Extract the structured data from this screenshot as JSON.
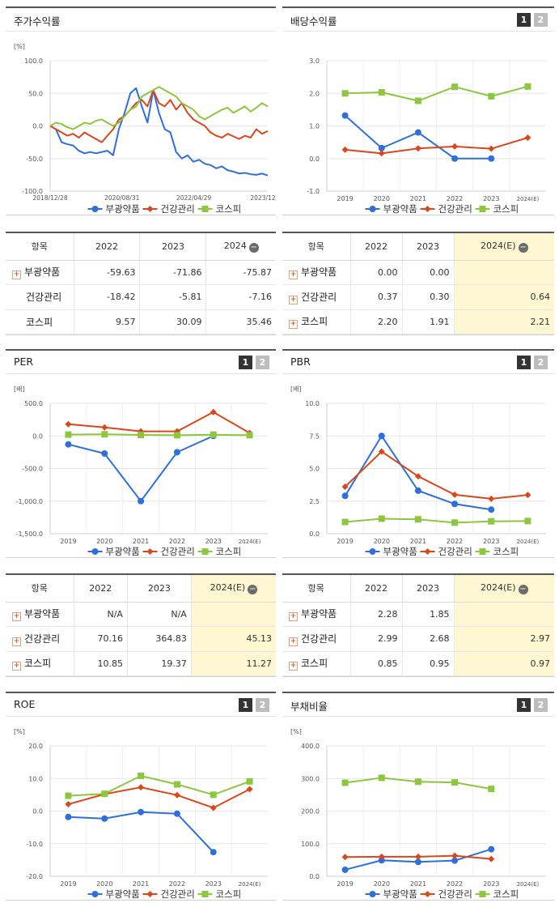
{
  "panels": {
    "stock_return": {
      "title": "주가수익률"
    },
    "dividend": {
      "title": "배당수익률",
      "btn1": "1",
      "btn2": "2"
    },
    "per": {
      "title": "PER",
      "btn1": "1",
      "btn2": "2"
    },
    "pbr": {
      "title": "PBR",
      "btn1": "1",
      "btn2": "2"
    },
    "roe": {
      "title": "ROE",
      "btn1": "1",
      "btn2": "2"
    },
    "debt": {
      "title": "부채비율",
      "btn1": "1",
      "btn2": "2"
    }
  },
  "legend": [
    "부광약품",
    "건강관리",
    "코스피"
  ],
  "colors": {
    "s1": "#2e6fdc",
    "s2": "#d9471a",
    "s3": "#8dc63f"
  },
  "tables": {
    "stock_return": {
      "headers": [
        "항목",
        "2022",
        "2023",
        "2024"
      ],
      "rows": [
        {
          "name": "부광약품",
          "plus": true,
          "values": [
            "-59.63",
            "-71.86",
            "-75.87"
          ]
        },
        {
          "name": "건강관리",
          "plus": false,
          "values": [
            "-18.42",
            "-5.81",
            "-7.16"
          ]
        },
        {
          "name": "코스피",
          "plus": false,
          "values": [
            "9.57",
            "30.09",
            "35.46"
          ]
        }
      ]
    },
    "dividend": {
      "headers": [
        "항목",
        "2022",
        "2023",
        "2024(E)"
      ],
      "rows": [
        {
          "name": "부광약품",
          "plus": true,
          "values": [
            "0.00",
            "0.00",
            ""
          ]
        },
        {
          "name": "건강관리",
          "plus": true,
          "values": [
            "0.37",
            "0.30",
            "0.64"
          ]
        },
        {
          "name": "코스피",
          "plus": true,
          "values": [
            "2.20",
            "1.91",
            "2.21"
          ]
        }
      ]
    },
    "per": {
      "headers": [
        "항목",
        "2022",
        "2023",
        "2024(E)"
      ],
      "rows": [
        {
          "name": "부광약품",
          "plus": true,
          "values": [
            "N/A",
            "N/A",
            ""
          ]
        },
        {
          "name": "건강관리",
          "plus": true,
          "values": [
            "70.16",
            "364.83",
            "45.13"
          ]
        },
        {
          "name": "코스피",
          "plus": true,
          "values": [
            "10.85",
            "19.37",
            "11.27"
          ]
        }
      ]
    },
    "pbr": {
      "headers": [
        "항목",
        "2022",
        "2023",
        "2024(E)"
      ],
      "rows": [
        {
          "name": "부광약품",
          "plus": true,
          "values": [
            "2.28",
            "1.85",
            ""
          ]
        },
        {
          "name": "건강관리",
          "plus": true,
          "values": [
            "2.99",
            "2.68",
            "2.97"
          ]
        },
        {
          "name": "코스피",
          "plus": true,
          "values": [
            "0.85",
            "0.95",
            "0.97"
          ]
        }
      ]
    }
  },
  "chart_data": [
    {
      "id": "stock_return",
      "type": "line",
      "unit": "[%]",
      "x_labels": [
        "2018/12/28",
        "2020/08/31",
        "2022/04/29",
        "2023/12/28"
      ],
      "ylim": [
        -100,
        100
      ],
      "yticks": [
        100,
        50,
        0,
        -50,
        -100
      ],
      "ytick_labels": [
        "100.0",
        "50.0",
        "0.0",
        "-50.0",
        "-100.0"
      ],
      "series": [
        {
          "name": "부광약품",
          "values": [
            0,
            -5,
            -25,
            -28,
            -30,
            -38,
            -42,
            -40,
            -42,
            -40,
            -38,
            -45,
            -5,
            20,
            50,
            58,
            30,
            5,
            55,
            20,
            -5,
            -10,
            -40,
            -50,
            -45,
            -55,
            -52,
            -58,
            -60,
            -65,
            -62,
            -68,
            -70,
            -73,
            -72,
            -74,
            -75,
            -73,
            -76
          ]
        },
        {
          "name": "부광약품_dummy_none",
          "values": []
        },
        {
          "name": "건강관리",
          "values": [
            0,
            -5,
            -10,
            -15,
            -12,
            -18,
            -10,
            -15,
            -20,
            -25,
            -15,
            -5,
            10,
            15,
            25,
            35,
            40,
            30,
            55,
            35,
            30,
            40,
            25,
            35,
            20,
            10,
            5,
            0,
            -10,
            -15,
            -18,
            -12,
            -16,
            -20,
            -15,
            -18,
            -5,
            -12,
            -8
          ]
        },
        {
          "name": "코스피",
          "values": [
            0,
            5,
            3,
            -2,
            -5,
            0,
            5,
            3,
            8,
            10,
            5,
            0,
            5,
            15,
            25,
            30,
            45,
            50,
            55,
            60,
            55,
            50,
            45,
            35,
            30,
            25,
            15,
            10,
            15,
            20,
            25,
            28,
            20,
            25,
            30,
            22,
            28,
            35,
            30
          ]
        }
      ]
    },
    {
      "id": "dividend",
      "type": "line",
      "unit": "",
      "categories": [
        "2019",
        "2020",
        "2021",
        "2022",
        "2023",
        "2024(E)"
      ],
      "ylim": [
        -1,
        3
      ],
      "yticks": [
        3,
        2,
        1,
        0,
        -1
      ],
      "ytick_labels": [
        "3.0",
        "2.0",
        "1.0",
        "0.0",
        "-1.0"
      ],
      "series": [
        {
          "name": "부광약품",
          "values": [
            1.32,
            0.32,
            0.8,
            0.0,
            0.0,
            null
          ]
        },
        {
          "name": "건강관리",
          "values": [
            0.27,
            0.16,
            0.31,
            0.37,
            0.3,
            0.64
          ]
        },
        {
          "name": "코스피",
          "values": [
            2.0,
            2.03,
            1.77,
            2.2,
            1.91,
            2.21
          ]
        }
      ]
    },
    {
      "id": "per",
      "type": "line",
      "unit": "[배]",
      "categories": [
        "2019",
        "2020",
        "2021",
        "2022",
        "2023",
        "2024(E)"
      ],
      "ylim": [
        -1500,
        500
      ],
      "yticks": [
        500,
        0,
        -500,
        -1000,
        -1500
      ],
      "ytick_labels": [
        "500.0",
        "0.0",
        "-500.0",
        "-1,000.0",
        "-1,500.0"
      ],
      "series": [
        {
          "name": "부광약품",
          "values": [
            -130,
            -270,
            -1000,
            -250,
            0,
            null
          ]
        },
        {
          "name": "건강관리",
          "values": [
            180,
            130,
            70,
            70.16,
            364.83,
            45.13
          ]
        },
        {
          "name": "코스피",
          "values": [
            20,
            25,
            15,
            10.85,
            19.37,
            11.27
          ]
        }
      ]
    },
    {
      "id": "pbr",
      "type": "line",
      "unit": "[배]",
      "categories": [
        "2019",
        "2020",
        "2021",
        "2022",
        "2023",
        "2024(E)"
      ],
      "ylim": [
        0,
        10
      ],
      "yticks": [
        10,
        7.5,
        5,
        2.5,
        0
      ],
      "ytick_labels": [
        "10.0",
        "7.5",
        "5.0",
        "2.5",
        "0.0"
      ],
      "series": [
        {
          "name": "부광약품",
          "values": [
            2.9,
            7.5,
            3.3,
            2.28,
            1.85,
            null
          ]
        },
        {
          "name": "건강관리",
          "values": [
            3.6,
            6.3,
            4.4,
            2.99,
            2.68,
            2.97
          ]
        },
        {
          "name": "코스피",
          "values": [
            0.9,
            1.15,
            1.1,
            0.85,
            0.95,
            0.97
          ]
        }
      ]
    },
    {
      "id": "roe",
      "type": "line",
      "unit": "[%]",
      "categories": [
        "2019",
        "2020",
        "2021",
        "2022",
        "2023",
        "2024(E)"
      ],
      "ylim": [
        -20,
        20
      ],
      "yticks": [
        20,
        10,
        0,
        -10,
        -20
      ],
      "ytick_labels": [
        "20.0",
        "10.0",
        "0.0",
        "-10.0",
        "-20.0"
      ],
      "series": [
        {
          "name": "부광약품",
          "values": [
            -1.8,
            -2.3,
            -0.3,
            -0.8,
            -12.6,
            null
          ]
        },
        {
          "name": "건강관리",
          "values": [
            2.1,
            5.2,
            7.3,
            4.9,
            1.0,
            6.7
          ]
        },
        {
          "name": "코스피",
          "values": [
            4.7,
            5.3,
            10.8,
            8.2,
            5.0,
            9.1
          ]
        }
      ]
    },
    {
      "id": "debt",
      "type": "line",
      "unit": "[%]",
      "categories": [
        "2019",
        "2020",
        "2021",
        "2022",
        "2023",
        "2024(E)"
      ],
      "ylim": [
        0,
        400
      ],
      "yticks": [
        400,
        300,
        200,
        100,
        0
      ],
      "ytick_labels": [
        "400.0",
        "300.0",
        "200.0",
        "100.0",
        "0.0"
      ],
      "series": [
        {
          "name": "부광약품",
          "values": [
            20,
            49,
            44,
            48,
            83,
            null
          ]
        },
        {
          "name": "건강관리",
          "values": [
            59,
            60,
            60,
            63,
            53,
            null
          ]
        },
        {
          "name": "코스피",
          "values": [
            287,
            302,
            290,
            288,
            268,
            null
          ]
        }
      ]
    }
  ]
}
